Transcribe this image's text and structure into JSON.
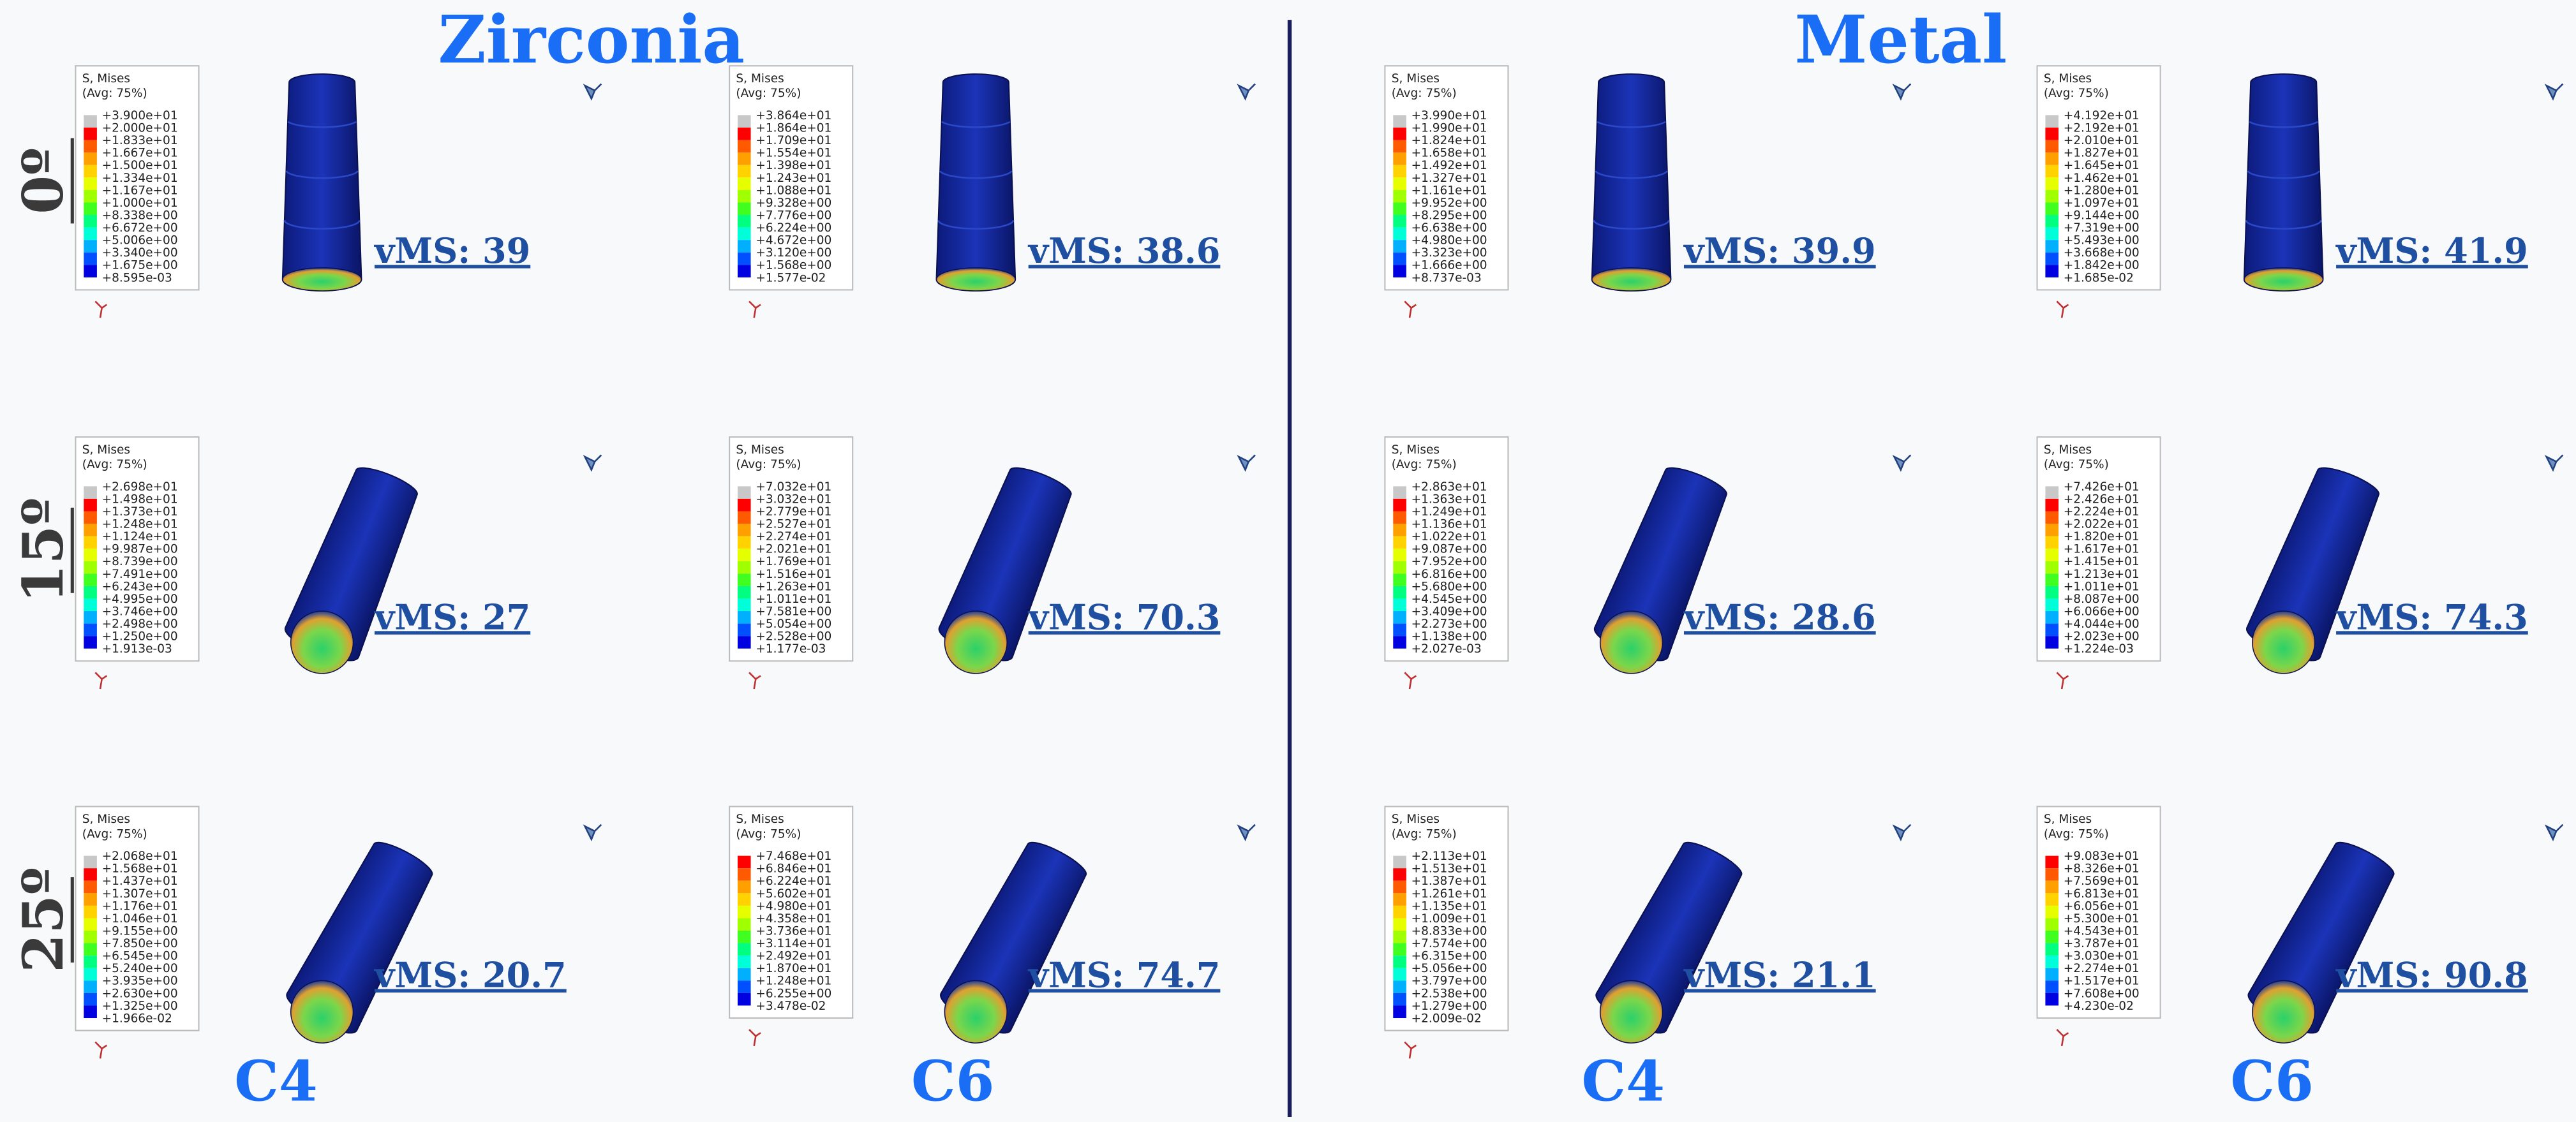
{
  "headers": [
    "Zirconia",
    "Metal"
  ],
  "columns": [
    "C4",
    "C6",
    "C4",
    "C6"
  ],
  "rows": [
    {
      "label": "0º",
      "panels": [
        {
          "legend": {
            "title": "S, Mises",
            "subtitle": "(Avg: 75%)",
            "values": [
              "+3.900e+01",
              "+2.000e+01",
              "+1.833e+01",
              "+1.667e+01",
              "+1.500e+01",
              "+1.334e+01",
              "+1.167e+01",
              "+1.000e+01",
              "+8.338e+00",
              "+6.672e+00",
              "+5.006e+00",
              "+3.340e+00",
              "+1.675e+00",
              "+8.595e-03"
            ]
          },
          "vms": "vMS: 39"
        },
        {
          "legend": {
            "title": "S, Mises",
            "subtitle": "(Avg: 75%)",
            "values": [
              "+3.864e+01",
              "+1.864e+01",
              "+1.709e+01",
              "+1.554e+01",
              "+1.398e+01",
              "+1.243e+01",
              "+1.088e+01",
              "+9.328e+00",
              "+7.776e+00",
              "+6.224e+00",
              "+4.672e+00",
              "+3.120e+00",
              "+1.568e+00",
              "+1.577e-02"
            ]
          },
          "vms": "vMS: 38.6"
        },
        {
          "legend": {
            "title": "S, Mises",
            "subtitle": "(Avg: 75%)",
            "values": [
              "+3.990e+01",
              "+1.990e+01",
              "+1.824e+01",
              "+1.658e+01",
              "+1.492e+01",
              "+1.327e+01",
              "+1.161e+01",
              "+9.952e+00",
              "+8.295e+00",
              "+6.638e+00",
              "+4.980e+00",
              "+3.323e+00",
              "+1.666e+00",
              "+8.737e-03"
            ]
          },
          "vms": "vMS: 39.9"
        },
        {
          "legend": {
            "title": "S, Mises",
            "subtitle": "(Avg: 75%)",
            "values": [
              "+4.192e+01",
              "+2.192e+01",
              "+2.010e+01",
              "+1.827e+01",
              "+1.645e+01",
              "+1.462e+01",
              "+1.280e+01",
              "+1.097e+01",
              "+9.144e+00",
              "+7.319e+00",
              "+5.493e+00",
              "+3.668e+00",
              "+1.842e+00",
              "+1.685e-02"
            ]
          },
          "vms": "vMS: 41.9"
        }
      ]
    },
    {
      "label": "15º",
      "panels": [
        {
          "legend": {
            "title": "S, Mises",
            "subtitle": "(Avg: 75%)",
            "values": [
              "+2.698e+01",
              "+1.498e+01",
              "+1.373e+01",
              "+1.248e+01",
              "+1.124e+01",
              "+9.987e+00",
              "+8.739e+00",
              "+7.491e+00",
              "+6.243e+00",
              "+4.995e+00",
              "+3.746e+00",
              "+2.498e+00",
              "+1.250e+00",
              "+1.913e-03"
            ]
          },
          "vms": "vMS: 27"
        },
        {
          "legend": {
            "title": "S, Mises",
            "subtitle": "(Avg: 75%)",
            "values": [
              "+7.032e+01",
              "+3.032e+01",
              "+2.779e+01",
              "+2.527e+01",
              "+2.274e+01",
              "+2.021e+01",
              "+1.769e+01",
              "+1.516e+01",
              "+1.263e+01",
              "+1.011e+01",
              "+7.581e+00",
              "+5.054e+00",
              "+2.528e+00",
              "+1.177e-03"
            ]
          },
          "vms": "vMS: 70.3"
        },
        {
          "legend": {
            "title": "S, Mises",
            "subtitle": "(Avg: 75%)",
            "values": [
              "+2.863e+01",
              "+1.363e+01",
              "+1.249e+01",
              "+1.136e+01",
              "+1.022e+01",
              "+9.087e+00",
              "+7.952e+00",
              "+6.816e+00",
              "+5.680e+00",
              "+4.545e+00",
              "+3.409e+00",
              "+2.273e+00",
              "+1.138e+00",
              "+2.027e-03"
            ]
          },
          "vms": "vMS: 28.6"
        },
        {
          "legend": {
            "title": "S, Mises",
            "subtitle": "(Avg: 75%)",
            "values": [
              "+7.426e+01",
              "+2.426e+01",
              "+2.224e+01",
              "+2.022e+01",
              "+1.820e+01",
              "+1.617e+01",
              "+1.415e+01",
              "+1.213e+01",
              "+1.011e+01",
              "+8.087e+00",
              "+6.066e+00",
              "+4.044e+00",
              "+2.023e+00",
              "+1.224e-03"
            ]
          },
          "vms": "vMS: 74.3"
        }
      ]
    },
    {
      "label": "25º",
      "panels": [
        {
          "legend": {
            "title": "S, Mises",
            "subtitle": "(Avg: 75%)",
            "values": [
              "+2.068e+01",
              "+1.568e+01",
              "+1.437e+01",
              "+1.307e+01",
              "+1.176e+01",
              "+1.046e+01",
              "+9.155e+00",
              "+7.850e+00",
              "+6.545e+00",
              "+5.240e+00",
              "+3.935e+00",
              "+2.630e+00",
              "+1.325e+00",
              "+1.966e-02"
            ]
          },
          "vms": "vMS: 20.7"
        },
        {
          "legend": {
            "title": "S, Mises",
            "subtitle": "(Avg: 75%)",
            "values": [
              "+7.468e+01",
              "+6.846e+01",
              "+6.224e+01",
              "+5.602e+01",
              "+4.980e+01",
              "+4.358e+01",
              "+3.736e+01",
              "+3.114e+01",
              "+2.492e+01",
              "+1.870e+01",
              "+1.248e+01",
              "+6.255e+00",
              "+3.478e-02"
            ]
          },
          "vms": "vMS: 74.7"
        },
        {
          "legend": {
            "title": "S, Mises",
            "subtitle": "(Avg: 75%)",
            "values": [
              "+2.113e+01",
              "+1.513e+01",
              "+1.387e+01",
              "+1.261e+01",
              "+1.135e+01",
              "+1.009e+01",
              "+8.833e+00",
              "+7.574e+00",
              "+6.315e+00",
              "+5.056e+00",
              "+3.797e+00",
              "+2.538e+00",
              "+1.279e+00",
              "+2.009e-02"
            ]
          },
          "vms": "vMS: 21.1"
        },
        {
          "legend": {
            "title": "S, Mises",
            "subtitle": "(Avg: 75%)",
            "values": [
              "+9.083e+01",
              "+8.326e+01",
              "+7.569e+01",
              "+6.813e+01",
              "+6.056e+01",
              "+5.300e+01",
              "+4.543e+01",
              "+3.787e+01",
              "+3.030e+01",
              "+2.274e+01",
              "+1.517e+01",
              "+7.608e+00",
              "+4.230e-02"
            ]
          },
          "vms": "vMS: 90.8"
        }
      ]
    }
  ]
}
